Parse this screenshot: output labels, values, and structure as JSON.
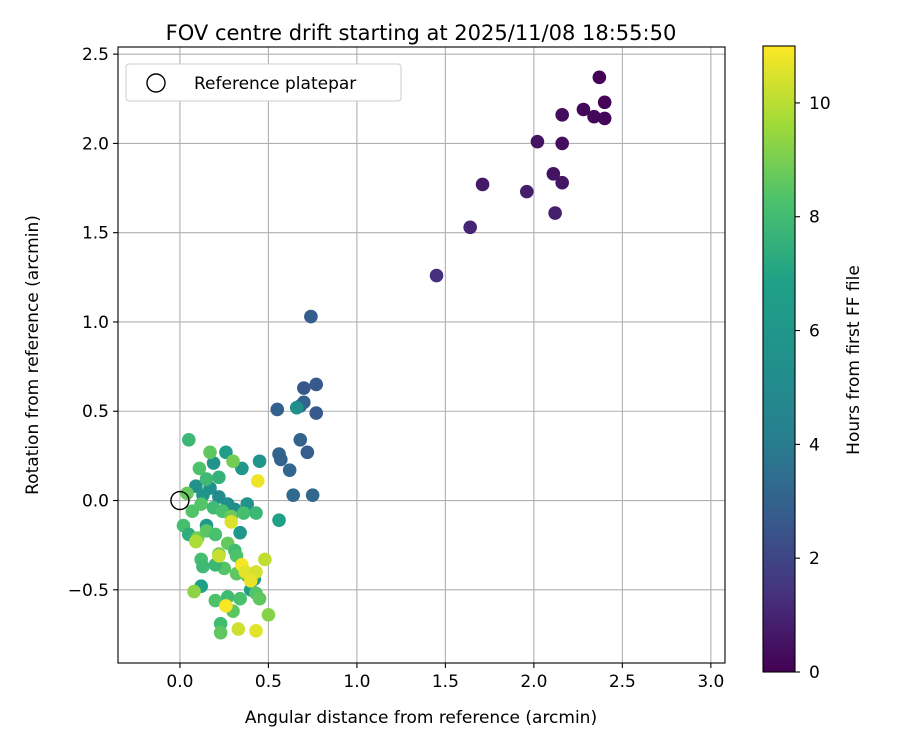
{
  "chart_data": {
    "type": "scatter",
    "title": "FOV centre drift starting at 2025/11/08 18:55:50",
    "xlabel": "Angular distance from reference (arcmin)",
    "ylabel": "Rotation from reference (arcmin)",
    "xlim": [
      -0.35,
      3.08
    ],
    "ylim": [
      -0.91,
      2.54
    ],
    "xticks": [
      0.0,
      0.5,
      1.0,
      1.5,
      2.0,
      2.5,
      3.0
    ],
    "xtick_labels": [
      "0.0",
      "0.5",
      "1.0",
      "1.5",
      "2.0",
      "2.5",
      "3.0"
    ],
    "yticks": [
      -0.5,
      0.0,
      0.5,
      1.0,
      1.5,
      2.0,
      2.5
    ],
    "ytick_labels": [
      "−0.5",
      "0.0",
      "0.5",
      "1.0",
      "1.5",
      "2.0",
      "2.5"
    ],
    "grid": true,
    "legend": {
      "position": "upper-left",
      "label": "Reference platepar"
    },
    "reference_point": {
      "x": 0.0,
      "y": 0.0
    },
    "colorbar": {
      "label": "Hours from first FF file",
      "colormap": "viridis",
      "range": [
        0,
        11
      ],
      "ticks": [
        0,
        2,
        4,
        6,
        8,
        10
      ],
      "tick_labels": [
        "0",
        "2",
        "4",
        "6",
        "8",
        "10"
      ]
    },
    "points": [
      {
        "x": 2.37,
        "y": 2.37,
        "t": 0.05
      },
      {
        "x": 2.4,
        "y": 2.23,
        "t": 0.1
      },
      {
        "x": 2.28,
        "y": 2.19,
        "t": 0.2
      },
      {
        "x": 2.34,
        "y": 2.15,
        "t": 0.2
      },
      {
        "x": 2.4,
        "y": 2.14,
        "t": 0.15
      },
      {
        "x": 2.16,
        "y": 2.16,
        "t": 0.3
      },
      {
        "x": 2.16,
        "y": 2.0,
        "t": 0.4
      },
      {
        "x": 2.02,
        "y": 2.01,
        "t": 0.5
      },
      {
        "x": 2.11,
        "y": 1.83,
        "t": 0.5
      },
      {
        "x": 2.16,
        "y": 1.78,
        "t": 0.6
      },
      {
        "x": 1.71,
        "y": 1.77,
        "t": 0.7
      },
      {
        "x": 1.96,
        "y": 1.73,
        "t": 0.8
      },
      {
        "x": 2.12,
        "y": 1.61,
        "t": 0.8
      },
      {
        "x": 1.64,
        "y": 1.53,
        "t": 1.0
      },
      {
        "x": 1.45,
        "y": 1.26,
        "t": 1.3
      },
      {
        "x": 0.74,
        "y": 1.03,
        "t": 2.8
      },
      {
        "x": 0.77,
        "y": 0.65,
        "t": 2.7
      },
      {
        "x": 0.7,
        "y": 0.63,
        "t": 2.6
      },
      {
        "x": 0.7,
        "y": 0.55,
        "t": 3.0
      },
      {
        "x": 0.68,
        "y": 0.53,
        "t": 3.2
      },
      {
        "x": 0.55,
        "y": 0.51,
        "t": 2.9
      },
      {
        "x": 0.77,
        "y": 0.49,
        "t": 2.7
      },
      {
        "x": 0.68,
        "y": 0.34,
        "t": 3.0
      },
      {
        "x": 0.72,
        "y": 0.27,
        "t": 2.8
      },
      {
        "x": 0.56,
        "y": 0.26,
        "t": 3.1
      },
      {
        "x": 0.57,
        "y": 0.23,
        "t": 3.0
      },
      {
        "x": 0.62,
        "y": 0.17,
        "t": 3.2
      },
      {
        "x": 0.64,
        "y": 0.03,
        "t": 3.3
      },
      {
        "x": 0.75,
        "y": 0.03,
        "t": 3.2
      },
      {
        "x": 0.66,
        "y": 0.52,
        "t": 5.4
      },
      {
        "x": 0.45,
        "y": 0.22,
        "t": 5.8
      },
      {
        "x": 0.56,
        "y": -0.11,
        "t": 6.8
      },
      {
        "x": 0.35,
        "y": 0.18,
        "t": 6.0
      },
      {
        "x": 0.19,
        "y": 0.21,
        "t": 5.6
      },
      {
        "x": 0.26,
        "y": 0.27,
        "t": 6.5
      },
      {
        "x": 0.17,
        "y": 0.07,
        "t": 5.5
      },
      {
        "x": 0.22,
        "y": 0.02,
        "t": 5.2
      },
      {
        "x": 0.27,
        "y": -0.02,
        "t": 5.4
      },
      {
        "x": 0.31,
        "y": -0.05,
        "t": 5.3
      },
      {
        "x": 0.38,
        "y": -0.02,
        "t": 5.6
      },
      {
        "x": 0.09,
        "y": 0.08,
        "t": 5.5
      },
      {
        "x": 0.13,
        "y": 0.03,
        "t": 5.8
      },
      {
        "x": 0.34,
        "y": -0.18,
        "t": 6.0
      },
      {
        "x": 0.15,
        "y": -0.14,
        "t": 6.1
      },
      {
        "x": 0.42,
        "y": -0.44,
        "t": 6.2
      },
      {
        "x": 0.4,
        "y": -0.5,
        "t": 6.6
      },
      {
        "x": 0.12,
        "y": -0.48,
        "t": 6.8
      },
      {
        "x": 0.05,
        "y": 0.34,
        "t": 7.8
      },
      {
        "x": 0.17,
        "y": 0.27,
        "t": 8.6
      },
      {
        "x": 0.11,
        "y": 0.18,
        "t": 8.3
      },
      {
        "x": 0.3,
        "y": 0.22,
        "t": 8.9
      },
      {
        "x": 0.15,
        "y": 0.12,
        "t": 7.9
      },
      {
        "x": 0.22,
        "y": 0.13,
        "t": 7.6
      },
      {
        "x": 0.04,
        "y": 0.04,
        "t": 8.7
      },
      {
        "x": 0.12,
        "y": -0.02,
        "t": 8.4
      },
      {
        "x": 0.19,
        "y": -0.04,
        "t": 7.9
      },
      {
        "x": 0.24,
        "y": -0.06,
        "t": 8.2
      },
      {
        "x": 0.29,
        "y": -0.09,
        "t": 8.8
      },
      {
        "x": 0.36,
        "y": -0.07,
        "t": 8.1
      },
      {
        "x": 0.43,
        "y": -0.07,
        "t": 7.8
      },
      {
        "x": 0.07,
        "y": -0.06,
        "t": 8.4
      },
      {
        "x": 0.02,
        "y": -0.14,
        "t": 8.1
      },
      {
        "x": 0.05,
        "y": -0.19,
        "t": 7.4
      },
      {
        "x": 0.1,
        "y": -0.21,
        "t": 8.9
      },
      {
        "x": 0.15,
        "y": -0.17,
        "t": 8.5
      },
      {
        "x": 0.2,
        "y": -0.19,
        "t": 8.2
      },
      {
        "x": 0.27,
        "y": -0.24,
        "t": 8.7
      },
      {
        "x": 0.31,
        "y": -0.28,
        "t": 8.0
      },
      {
        "x": 0.12,
        "y": -0.33,
        "t": 8.1
      },
      {
        "x": 0.13,
        "y": -0.37,
        "t": 7.9
      },
      {
        "x": 0.22,
        "y": -0.3,
        "t": 8.8
      },
      {
        "x": 0.32,
        "y": -0.31,
        "t": 8.3
      },
      {
        "x": 0.38,
        "y": -0.42,
        "t": 8.1
      },
      {
        "x": 0.32,
        "y": -0.41,
        "t": 8.6
      },
      {
        "x": 0.25,
        "y": -0.38,
        "t": 8.4
      },
      {
        "x": 0.2,
        "y": -0.36,
        "t": 7.8
      },
      {
        "x": 0.43,
        "y": -0.52,
        "t": 8.4
      },
      {
        "x": 0.45,
        "y": -0.55,
        "t": 8.6
      },
      {
        "x": 0.34,
        "y": -0.55,
        "t": 8.2
      },
      {
        "x": 0.27,
        "y": -0.54,
        "t": 8.0
      },
      {
        "x": 0.2,
        "y": -0.56,
        "t": 8.3
      },
      {
        "x": 0.3,
        "y": -0.62,
        "t": 8.5
      },
      {
        "x": 0.23,
        "y": -0.69,
        "t": 8.0
      },
      {
        "x": 0.23,
        "y": -0.74,
        "t": 8.6
      },
      {
        "x": 0.5,
        "y": -0.64,
        "t": 9.2
      },
      {
        "x": 0.08,
        "y": -0.51,
        "t": 9.3
      },
      {
        "x": 0.09,
        "y": -0.23,
        "t": 9.8
      },
      {
        "x": 0.29,
        "y": -0.12,
        "t": 10.5
      },
      {
        "x": 0.44,
        "y": 0.11,
        "t": 10.8
      },
      {
        "x": 0.22,
        "y": -0.31,
        "t": 10.2
      },
      {
        "x": 0.35,
        "y": -0.36,
        "t": 10.9
      },
      {
        "x": 0.37,
        "y": -0.4,
        "t": 10.6
      },
      {
        "x": 0.43,
        "y": -0.4,
        "t": 10.4
      },
      {
        "x": 0.48,
        "y": -0.33,
        "t": 10.1
      },
      {
        "x": 0.4,
        "y": -0.45,
        "t": 10.7
      },
      {
        "x": 0.26,
        "y": -0.59,
        "t": 10.9
      },
      {
        "x": 0.33,
        "y": -0.72,
        "t": 10.3
      },
      {
        "x": 0.43,
        "y": -0.73,
        "t": 10.6
      }
    ]
  }
}
